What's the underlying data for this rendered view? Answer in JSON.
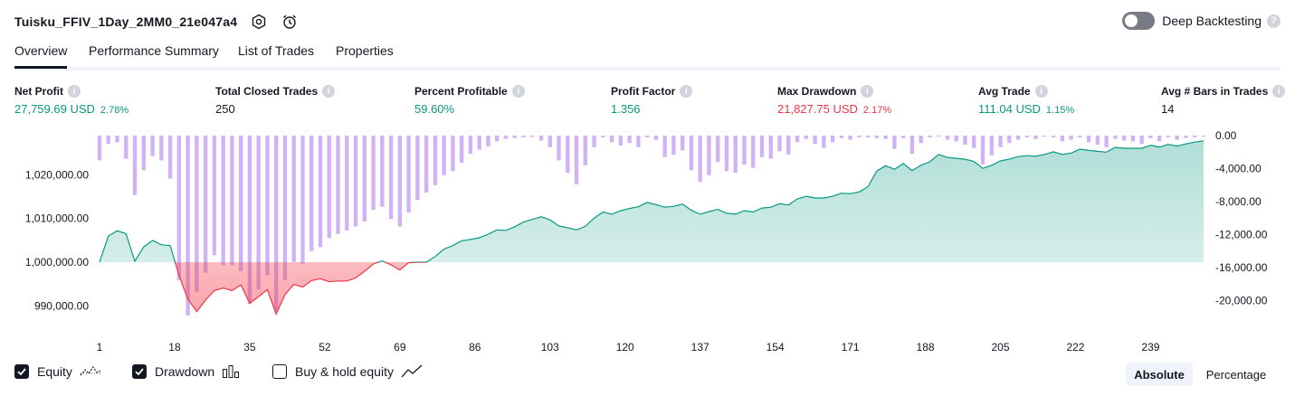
{
  "header": {
    "title": "Tuisku_FFIV_1Day_2MM0_21e047a4",
    "deep_backtesting_label": "Deep Backtesting",
    "deep_backtesting_on": false
  },
  "tabs": [
    {
      "label": "Overview",
      "active": true
    },
    {
      "label": "Performance Summary",
      "active": false
    },
    {
      "label": "List of Trades",
      "active": false
    },
    {
      "label": "Properties",
      "active": false
    }
  ],
  "metrics": [
    {
      "label": "Net Profit",
      "value": "27,759.69 USD",
      "pct": "2.78%",
      "color": "#089981"
    },
    {
      "label": "Total Closed Trades",
      "value": "250",
      "pct": "",
      "color": "#131722"
    },
    {
      "label": "Percent Profitable",
      "value": "59.60%",
      "pct": "",
      "color": "#089981"
    },
    {
      "label": "Profit Factor",
      "value": "1.356",
      "pct": "",
      "color": "#089981"
    },
    {
      "label": "Max Drawdown",
      "value": "21,827.75 USD",
      "pct": "2.17%",
      "color": "#f23645"
    },
    {
      "label": "Avg Trade",
      "value": "111.04 USD",
      "pct": "1.15%",
      "color": "#089981"
    },
    {
      "label": "Avg # Bars in Trades",
      "value": "14",
      "pct": "",
      "color": "#131722"
    }
  ],
  "legend": {
    "equity_label": "Equity",
    "drawdown_label": "Drawdown",
    "buyhold_label": "Buy & hold equity",
    "equity_checked": true,
    "drawdown_checked": true,
    "buyhold_checked": false
  },
  "view_toggle": {
    "absolute_label": "Absolute",
    "percentage_label": "Percentage",
    "selected": "Absolute"
  },
  "colors": {
    "equity_up": "#089981",
    "equity_down": "#f23645",
    "drawdown_bar": "#d1b3f5",
    "accent": "#131722"
  },
  "chart_data": {
    "type": "area",
    "x_ticks": [
      "1",
      "18",
      "35",
      "52",
      "69",
      "86",
      "103",
      "120",
      "137",
      "154",
      "171",
      "188",
      "205",
      "222",
      "239"
    ],
    "xlim": [
      1,
      251
    ],
    "left_axis": {
      "ticks": [
        "1,020,000.00",
        "1,010,000.00",
        "1,000,000.00",
        "990,000.00"
      ],
      "ylim": [
        985500,
        1029000
      ],
      "baseline": 1000000
    },
    "right_axis": {
      "ticks": [
        "0.00",
        "-4,000.00",
        "-8,000.00",
        "-12,000.00",
        "-16,000.00",
        "-20,000.00"
      ],
      "ylim": [
        -23000,
        0
      ]
    },
    "equity": {
      "name": "Equity",
      "x": [
        1,
        3,
        5,
        7,
        9,
        11,
        13,
        15,
        17,
        19,
        21,
        23,
        25,
        27,
        29,
        31,
        33,
        35,
        37,
        39,
        41,
        43,
        45,
        47,
        49,
        51,
        53,
        55,
        57,
        59,
        61,
        63,
        65,
        67,
        69,
        71,
        73,
        75,
        77,
        79,
        81,
        83,
        85,
        87,
        89,
        91,
        93,
        95,
        97,
        99,
        101,
        103,
        105,
        107,
        109,
        111,
        113,
        115,
        117,
        119,
        121,
        123,
        125,
        127,
        129,
        131,
        133,
        135,
        137,
        139,
        141,
        143,
        145,
        147,
        149,
        151,
        153,
        155,
        157,
        159,
        161,
        163,
        165,
        167,
        169,
        171,
        173,
        175,
        177,
        179,
        181,
        183,
        185,
        187,
        189,
        191,
        193,
        195,
        197,
        199,
        201,
        203,
        205,
        207,
        209,
        211,
        213,
        215,
        217,
        219,
        221,
        223,
        225,
        227,
        229,
        231,
        233,
        235,
        237,
        239,
        241,
        243,
        245,
        247,
        249,
        251
      ],
      "y": [
        1000000,
        1006000,
        1007200,
        1006500,
        1000200,
        1003500,
        1005000,
        1004000,
        1003800,
        997000,
        991500,
        988700,
        991300,
        993500,
        994100,
        993500,
        994800,
        990600,
        992100,
        993700,
        988100,
        992600,
        994900,
        994300,
        995800,
        996200,
        995500,
        995700,
        995700,
        996400,
        997900,
        999600,
        1000300,
        999400,
        998200,
        999900,
        1000000,
        1000000,
        1001300,
        1003000,
        1003800,
        1004900,
        1005200,
        1005600,
        1006400,
        1007400,
        1007300,
        1008100,
        1009200,
        1009800,
        1010400,
        1009700,
        1008300,
        1007900,
        1007400,
        1008200,
        1010100,
        1011500,
        1011000,
        1011800,
        1012300,
        1012700,
        1013700,
        1013200,
        1012600,
        1012800,
        1013300,
        1011900,
        1011000,
        1011600,
        1012100,
        1011200,
        1011000,
        1011800,
        1011500,
        1012400,
        1012600,
        1013400,
        1013100,
        1014500,
        1015100,
        1014700,
        1014700,
        1015100,
        1015800,
        1015700,
        1016100,
        1017300,
        1020900,
        1022100,
        1021300,
        1022600,
        1021000,
        1022200,
        1023000,
        1024700,
        1024000,
        1023800,
        1023600,
        1023100,
        1021500,
        1022200,
        1023200,
        1023600,
        1024200,
        1024400,
        1024300,
        1024700,
        1025300,
        1024700,
        1025000,
        1025900,
        1025600,
        1025400,
        1025200,
        1026300,
        1026100,
        1026100,
        1026100,
        1026800,
        1026400,
        1027000,
        1026600,
        1027100,
        1027500,
        1027800
      ]
    },
    "drawdown": {
      "name": "Drawdown",
      "x": [
        1,
        3,
        5,
        7,
        9,
        11,
        13,
        15,
        17,
        19,
        21,
        23,
        25,
        27,
        29,
        31,
        33,
        35,
        37,
        39,
        41,
        43,
        45,
        47,
        49,
        51,
        53,
        55,
        57,
        59,
        61,
        63,
        65,
        67,
        69,
        71,
        73,
        75,
        77,
        79,
        81,
        83,
        85,
        87,
        89,
        91,
        93,
        95,
        97,
        99,
        101,
        103,
        105,
        107,
        109,
        111,
        113,
        115,
        117,
        119,
        121,
        123,
        125,
        127,
        129,
        131,
        133,
        135,
        137,
        139,
        141,
        143,
        145,
        147,
        149,
        151,
        153,
        155,
        157,
        159,
        161,
        163,
        165,
        167,
        169,
        171,
        173,
        175,
        177,
        179,
        181,
        183,
        185,
        187,
        189,
        191,
        193,
        195,
        197,
        199,
        201,
        203,
        205,
        207,
        209,
        211,
        213,
        215,
        217,
        219,
        221,
        223,
        225,
        227,
        229,
        231,
        233,
        235,
        237,
        239,
        241,
        243,
        245,
        247,
        249,
        251
      ],
      "y": [
        -3000,
        -1000,
        -800,
        -2800,
        -7200,
        -4200,
        -2500,
        -3000,
        -5200,
        -17500,
        -21800,
        -18900,
        -16600,
        -14500,
        -15700,
        -15700,
        -16400,
        -20400,
        -18600,
        -16900,
        -21300,
        -17500,
        -15300,
        -15500,
        -14000,
        -13500,
        -12400,
        -11900,
        -11500,
        -11000,
        -10400,
        -9000,
        -8600,
        -10100,
        -11000,
        -9300,
        -7800,
        -6900,
        -6000,
        -4800,
        -4300,
        -3300,
        -2200,
        -1700,
        -1300,
        -700,
        -400,
        -300,
        -200,
        -150,
        -600,
        -1400,
        -3000,
        -4500,
        -5900,
        -3600,
        -1400,
        -200,
        -800,
        -1200,
        -900,
        -1400,
        -200,
        -500,
        -2600,
        -2300,
        -1800,
        -4200,
        -5600,
        -4800,
        -3200,
        -4300,
        -4500,
        -3500,
        -3900,
        -2600,
        -2800,
        -1900,
        -2300,
        -800,
        -400,
        -1000,
        -1500,
        -800,
        -300,
        -500,
        -200,
        -200,
        -300,
        -400,
        -1600,
        -300,
        -2200,
        -900,
        -200,
        -100,
        -500,
        -700,
        -1100,
        -1500,
        -3500,
        -2400,
        -1400,
        -900,
        -500,
        -200,
        -400,
        -100,
        -200,
        -700,
        -500,
        -200,
        -800,
        -1100,
        -1400,
        -400,
        -600,
        -700,
        -1000,
        -300,
        -700,
        -200,
        -500,
        -300,
        -200,
        -100
      ]
    }
  }
}
